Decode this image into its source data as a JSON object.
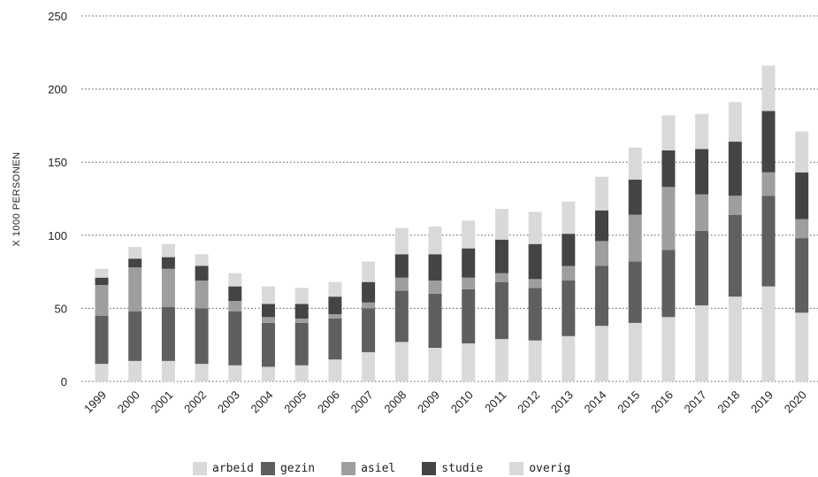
{
  "chart_data": {
    "type": "bar",
    "stacked": true,
    "ylabel": "X 1000 PERSONEN",
    "ylim": [
      0,
      250
    ],
    "yticks": [
      0,
      50,
      100,
      150,
      200,
      250
    ],
    "grid": true,
    "legend_position": "bottom",
    "categories": [
      "1999",
      "2000",
      "2001",
      "2002",
      "2003",
      "2004",
      "2005",
      "2006",
      "2007",
      "2008",
      "2009",
      "2010",
      "2011",
      "2012",
      "2013",
      "2014",
      "2015",
      "2016",
      "2017",
      "2018",
      "2019",
      "2020"
    ],
    "series": [
      {
        "name": "arbeid",
        "color": "#d9d9d9",
        "values": [
          12,
          14,
          14,
          12,
          11,
          10,
          11,
          15,
          20,
          27,
          23,
          26,
          29,
          28,
          31,
          38,
          40,
          44,
          52,
          58,
          65,
          47
        ]
      },
      {
        "name": "gezin",
        "color": "#5f5f5f",
        "values": [
          33,
          34,
          37,
          38,
          37,
          30,
          29,
          28,
          30,
          35,
          37,
          37,
          39,
          36,
          38,
          41,
          42,
          46,
          51,
          56,
          62,
          51
        ]
      },
      {
        "name": "asiel",
        "color": "#9e9e9e",
        "values": [
          21,
          30,
          26,
          19,
          7,
          4,
          3,
          3,
          4,
          9,
          9,
          8,
          6,
          6,
          10,
          17,
          32,
          43,
          25,
          13,
          16,
          13
        ]
      },
      {
        "name": "studie",
        "color": "#444444",
        "values": [
          5,
          6,
          8,
          10,
          10,
          9,
          10,
          12,
          14,
          16,
          18,
          20,
          23,
          24,
          22,
          21,
          24,
          25,
          31,
          37,
          42,
          32
        ]
      },
      {
        "name": "overig",
        "color": "#d9d9d9",
        "values": [
          6,
          8,
          9,
          8,
          9,
          12,
          11,
          10,
          14,
          18,
          19,
          19,
          21,
          22,
          22,
          23,
          22,
          24,
          24,
          27,
          31,
          28
        ]
      }
    ]
  }
}
